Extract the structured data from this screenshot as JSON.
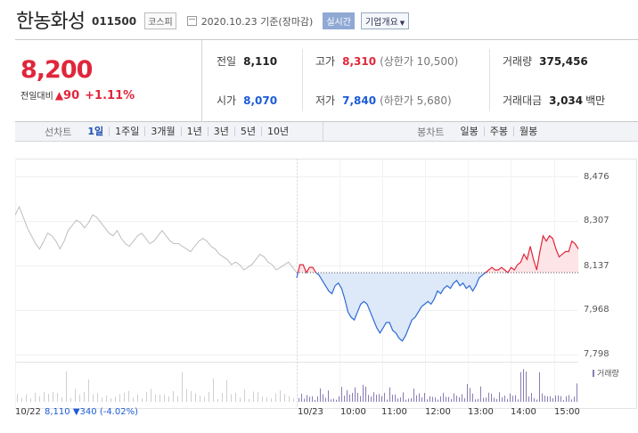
{
  "header": {
    "stock_name": "한농화성",
    "stock_code": "011500",
    "market_badge": "코스피",
    "date_text": "2020.10.23 기준(장마감)",
    "realtime_badge": "실시간",
    "corp_button": "기업개요",
    "corp_arrow": "▼"
  },
  "quote": {
    "current_price": "8,200",
    "change_label": "전일대비",
    "change_direction": "▲",
    "change_value": "90",
    "change_percent": "+1.11%",
    "prev_close_label": "전일",
    "prev_close": "8,110",
    "high_label": "고가",
    "high": "8,310",
    "upper_limit": "(상한가 10,500)",
    "volume_label": "거래량",
    "volume": "375,456",
    "open_label": "시가",
    "open": "8,070",
    "low_label": "저가",
    "low": "7,840",
    "lower_limit": "(하한가 5,680)",
    "trade_value_label": "거래대금",
    "trade_value": "3,034",
    "trade_value_unit": "백만"
  },
  "tabs": {
    "line_label": "선차트",
    "line_options": [
      "1일",
      "1주일",
      "3개월",
      "1년",
      "3년",
      "5년",
      "10년"
    ],
    "selected_line": "1일",
    "candle_label": "봉차트",
    "candle_options": [
      "일봉",
      "주봉",
      "월봉"
    ]
  },
  "chart_data": {
    "type": "line",
    "y_ticks": [
      "8,476",
      "8,307",
      "8,137",
      "7,968",
      "7,798"
    ],
    "ylim": [
      7798,
      8476
    ],
    "baseline": 8110,
    "x_ticks": [
      "10:00",
      "11:00",
      "12:00",
      "13:00",
      "14:00",
      "15:00"
    ],
    "prev_day_label": "10/22",
    "today_label": "10/23",
    "prev_day_summary": {
      "close": "8,110",
      "direction": "▼",
      "change": "340",
      "percent": "(-4.02%)"
    },
    "volume_legend": "거래량",
    "colors": {
      "up": "#e0263b",
      "down": "#2d6bd6",
      "prev": "#bdbdbd",
      "volume": "#8a7bb4"
    },
    "prev_day_prices": [
      8330,
      8360,
      8320,
      8280,
      8250,
      8220,
      8200,
      8230,
      8260,
      8250,
      8230,
      8200,
      8230,
      8270,
      8290,
      8310,
      8300,
      8280,
      8300,
      8330,
      8320,
      8300,
      8280,
      8260,
      8250,
      8270,
      8240,
      8220,
      8210,
      8230,
      8250,
      8260,
      8240,
      8220,
      8230,
      8250,
      8270,
      8250,
      8230,
      8220,
      8220,
      8210,
      8200,
      8190,
      8210,
      8230,
      8240,
      8230,
      8210,
      8200,
      8180,
      8170,
      8160,
      8140,
      8150,
      8140,
      8120,
      8130,
      8140,
      8160,
      8180,
      8170,
      8150,
      8140,
      8120,
      8130,
      8140,
      8150,
      8130,
      8110
    ],
    "today_prices": [
      8090,
      8140,
      8140,
      8110,
      8130,
      8130,
      8110,
      8100,
      8080,
      8060,
      8040,
      8030,
      8060,
      8070,
      8050,
      8010,
      7960,
      7940,
      7930,
      7960,
      7990,
      8000,
      7990,
      7960,
      7930,
      7900,
      7880,
      7900,
      7920,
      7920,
      7890,
      7880,
      7860,
      7850,
      7870,
      7900,
      7930,
      7940,
      7960,
      7980,
      7990,
      8000,
      7990,
      8010,
      8040,
      8030,
      8050,
      8060,
      8050,
      8070,
      8080,
      8060,
      8070,
      8050,
      8060,
      8040,
      8060,
      8090,
      8100,
      8110,
      8120,
      8130,
      8120,
      8120,
      8130,
      8120,
      8110,
      8130,
      8120,
      8140,
      8150,
      8180,
      8160,
      8210,
      8160,
      8120,
      8190,
      8250,
      8230,
      8250,
      8240,
      8200,
      8170,
      8180,
      8190,
      8190,
      8230,
      8220,
      8200
    ]
  }
}
